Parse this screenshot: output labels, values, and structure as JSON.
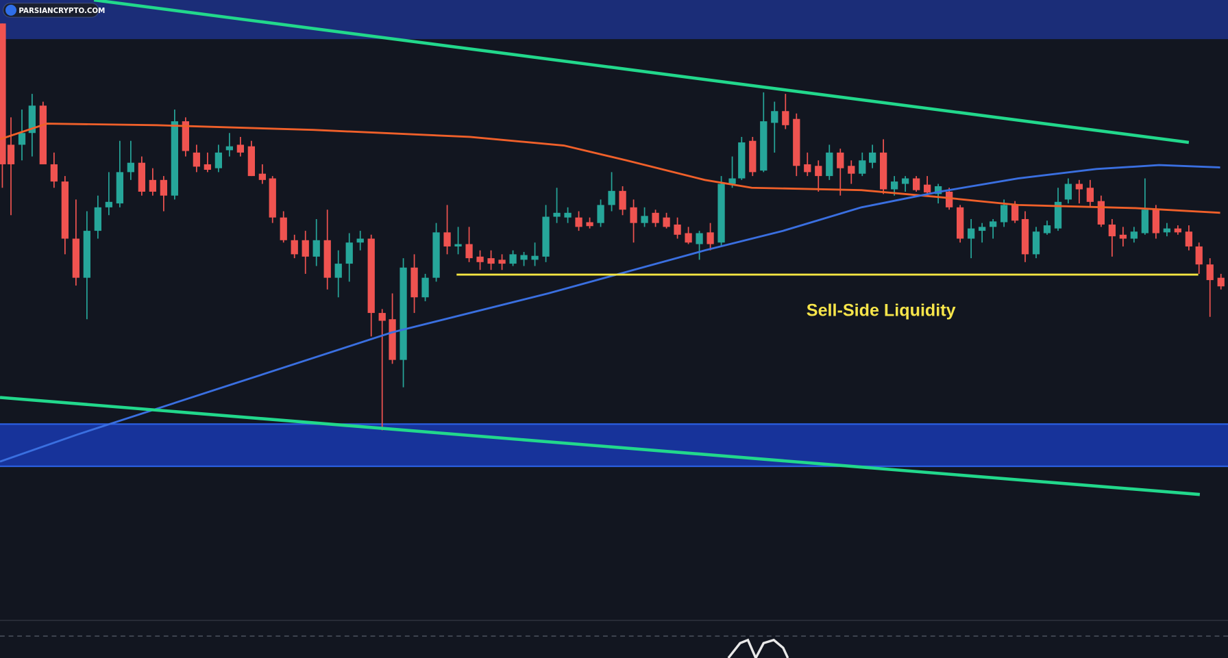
{
  "watermark": "PARSIANCRYPTO.COM",
  "annotation": "Sell-Side Liquidity"
}
